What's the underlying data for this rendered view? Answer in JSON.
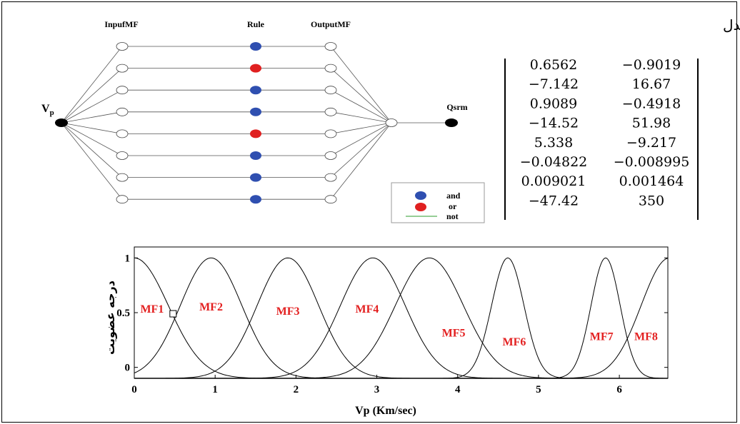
{
  "network": {
    "input_header": "InpufMF",
    "rule_header": "Rule",
    "output_header": "OutputMF",
    "input_node_label": "V",
    "input_node_sub": "p",
    "output_node_label": "Qsrm",
    "rule_colors": [
      "#2f4fb0",
      "#e02020",
      "#2f4fb0",
      "#2f4fb0",
      "#e02020",
      "#2f4fb0",
      "#2f4fb0",
      "#2f4fb0"
    ],
    "legend": {
      "and": "and",
      "or": "or",
      "not": "not",
      "and_color": "#2f4fb0",
      "or_color": "#e02020",
      "not_color": "#2e9e2e"
    }
  },
  "matrix": {
    "title": "ماتریس ضرایب معادله خروجی مدل",
    "rows": [
      [
        "0.6562",
        "−0.9019"
      ],
      [
        "−7.142",
        "16.67"
      ],
      [
        "0.9089",
        "−0.4918"
      ],
      [
        "−14.52",
        "51.98"
      ],
      [
        "5.338",
        "−9.217"
      ],
      [
        "−0.04822",
        "−0.008995"
      ],
      [
        "0.009021",
        "0.001464"
      ],
      [
        "−47.42",
        "350"
      ]
    ]
  },
  "chart_data": {
    "type": "line",
    "xlabel": "Vp (Km/sec)",
    "ylabel": "درجه عضویت",
    "xlim": [
      0,
      6.6
    ],
    "ylim": [
      -0.1,
      1.1
    ],
    "xticks": [
      "0",
      "1",
      "2",
      "3",
      "4",
      "5",
      "6"
    ],
    "yticks": [
      "0",
      "0.5",
      "1"
    ],
    "series": [
      {
        "name": "MF1",
        "type": "gauss",
        "center": 0.0,
        "sigma": 0.42
      },
      {
        "name": "MF2",
        "type": "gauss",
        "center": 0.95,
        "sigma": 0.38
      },
      {
        "name": "MF3",
        "type": "gauss",
        "center": 1.9,
        "sigma": 0.38
      },
      {
        "name": "MF4",
        "type": "gauss",
        "center": 2.95,
        "sigma": 0.4
      },
      {
        "name": "MF5",
        "type": "gauss",
        "center": 3.65,
        "sigma": 0.42
      },
      {
        "name": "MF6",
        "type": "gauss",
        "center": 4.62,
        "sigma": 0.2
      },
      {
        "name": "MF7",
        "type": "gauss",
        "center": 5.83,
        "sigma": 0.18
      },
      {
        "name": "MF8",
        "type": "gauss",
        "center": 6.62,
        "sigma": 0.35
      }
    ],
    "mf_labels": [
      {
        "text": "MF1",
        "x": 0.22,
        "y": 0.5
      },
      {
        "text": "MF2",
        "x": 0.95,
        "y": 0.52
      },
      {
        "text": "MF3",
        "x": 1.9,
        "y": 0.48
      },
      {
        "text": "MF4",
        "x": 2.88,
        "y": 0.5
      },
      {
        "text": "MF5",
        "x": 3.95,
        "y": 0.28
      },
      {
        "text": "MF6",
        "x": 4.7,
        "y": 0.2
      },
      {
        "text": "MF7",
        "x": 5.78,
        "y": 0.25
      },
      {
        "text": "MF8",
        "x": 6.33,
        "y": 0.25
      }
    ],
    "marker": {
      "x": 0.48,
      "y": 0.49
    }
  }
}
